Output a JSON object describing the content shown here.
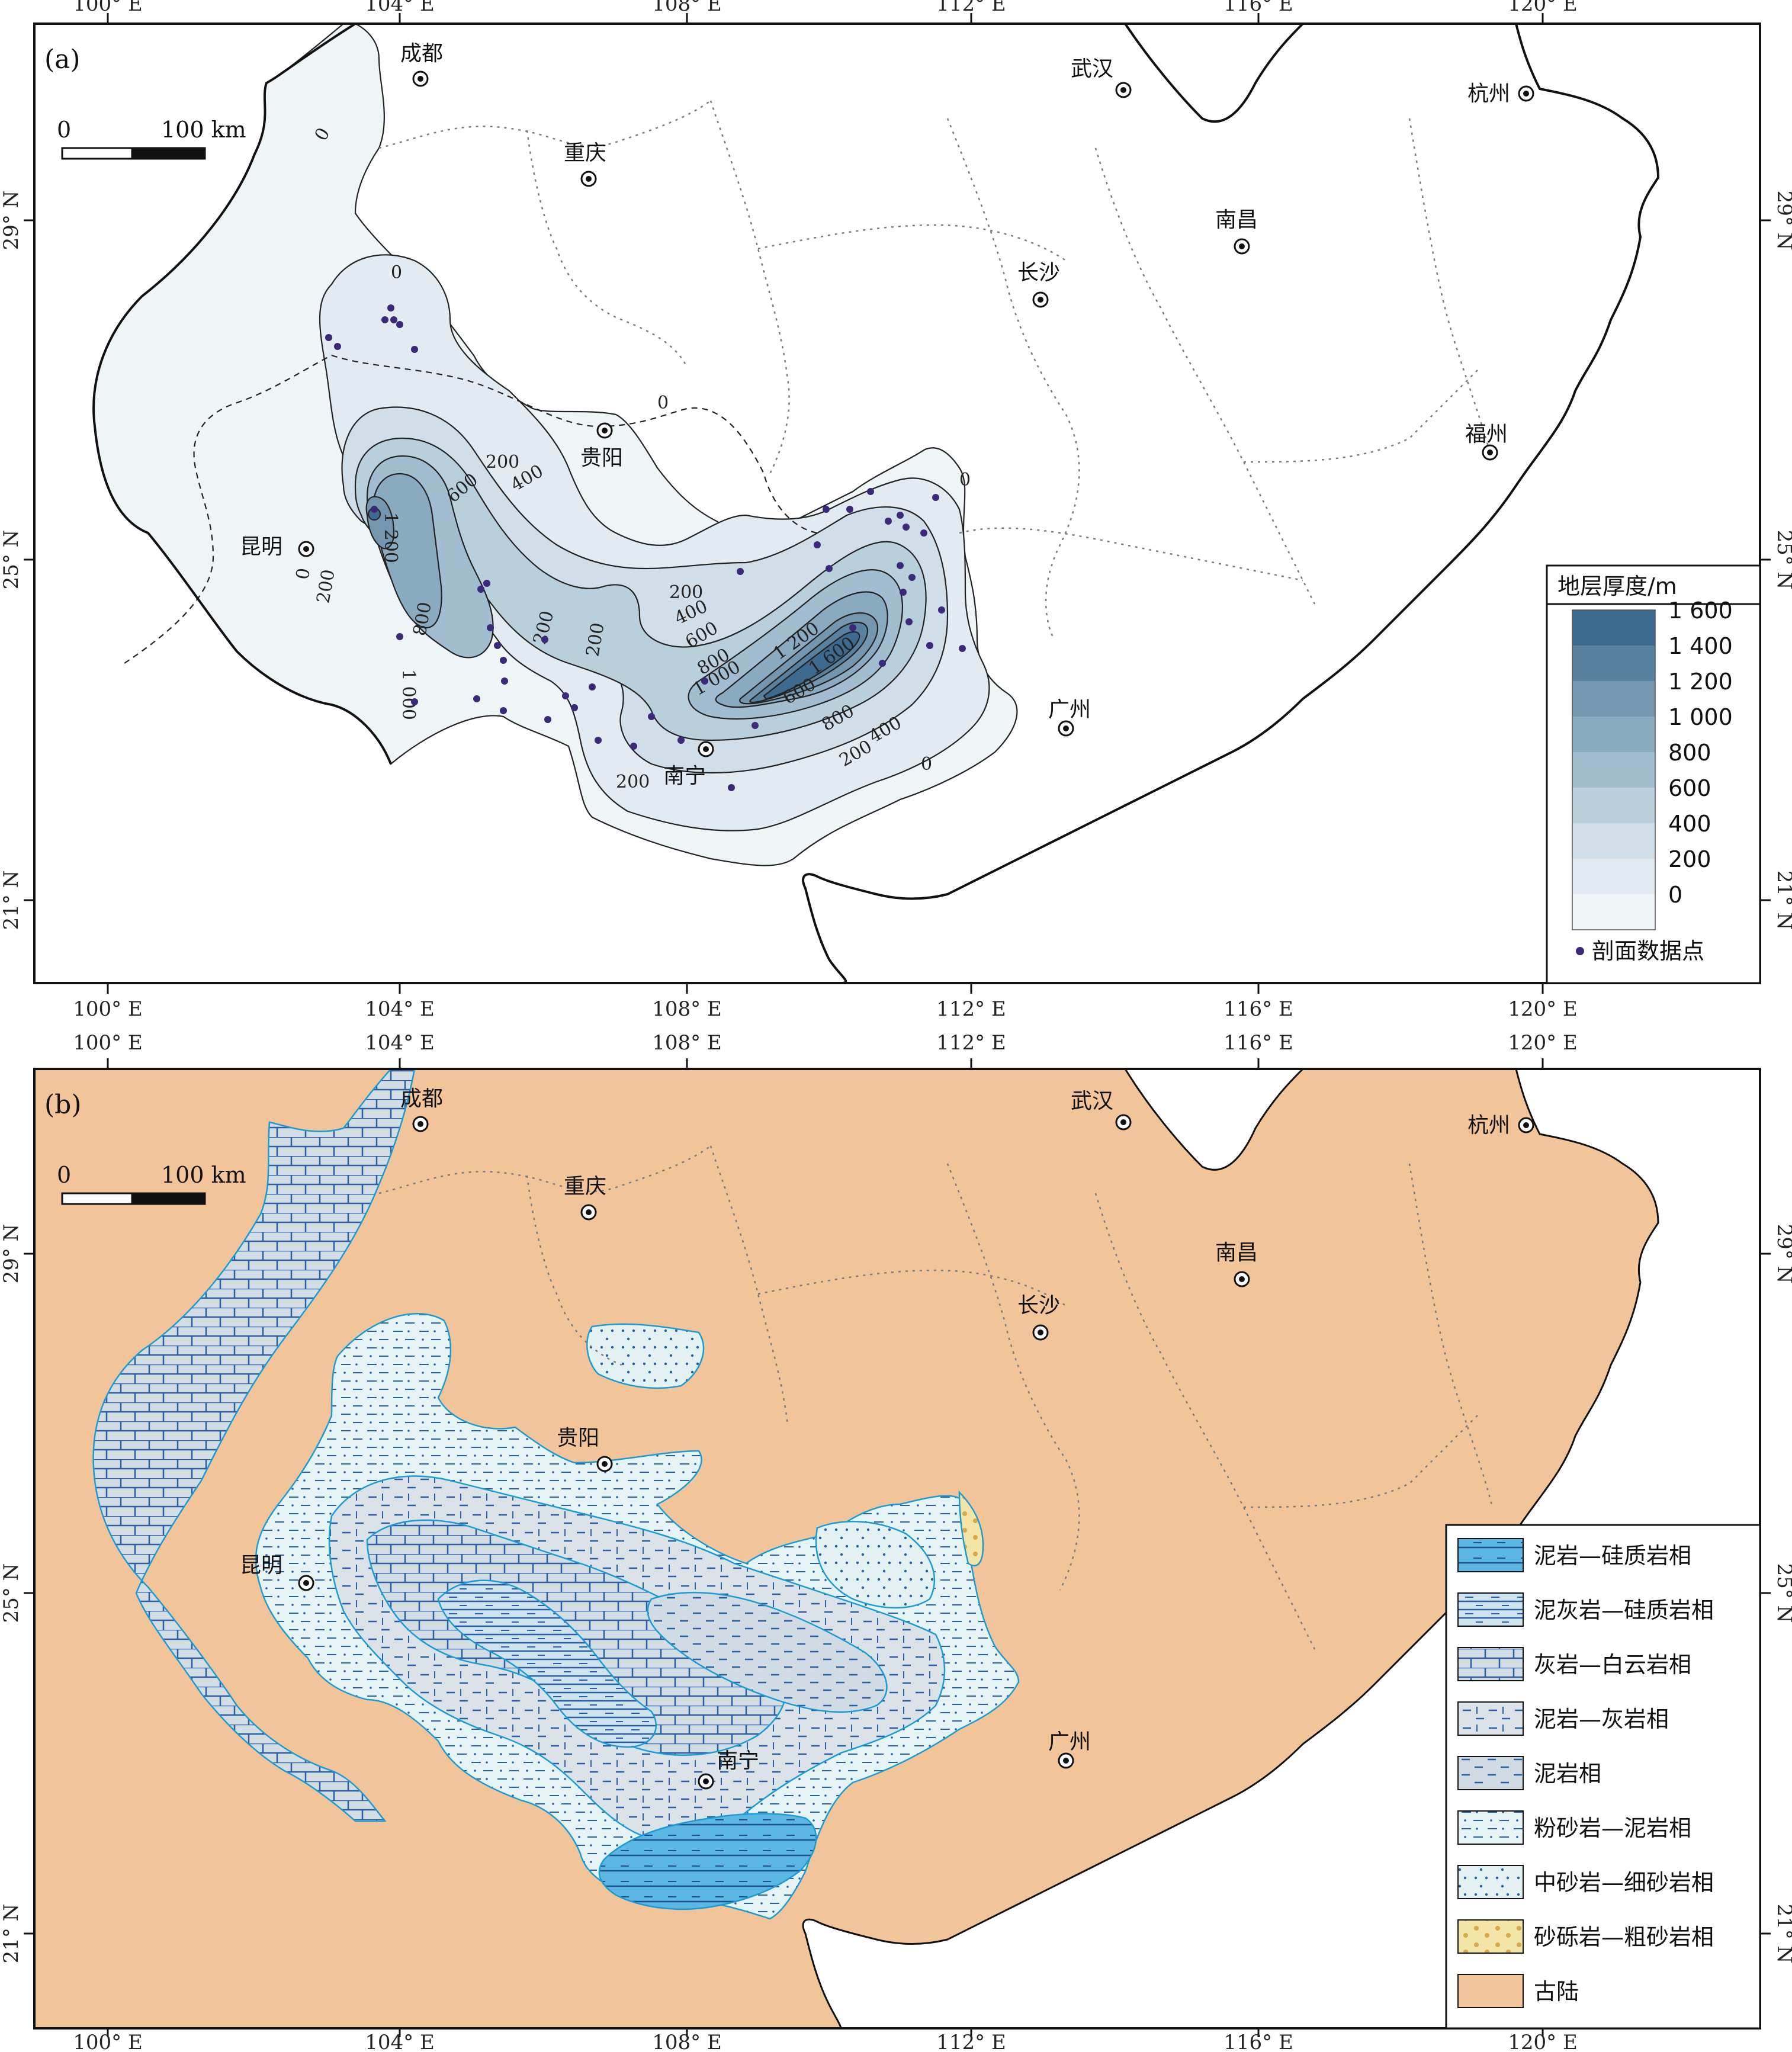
{
  "panel_a": {
    "label": "(a)",
    "lon_ticks": [
      "100° E",
      "104° E",
      "108° E",
      "112° E",
      "116° E",
      "120° E"
    ],
    "lat_ticks": [
      "29° N",
      "25° N",
      "21° N"
    ],
    "scale_bar": {
      "zero": "0",
      "distance": "100 km"
    },
    "cities": [
      {
        "id": "chengdu",
        "name": "成都"
      },
      {
        "id": "chongqing",
        "name": "重庆"
      },
      {
        "id": "wuhan",
        "name": "武汉"
      },
      {
        "id": "hangzhou",
        "name": "杭州"
      },
      {
        "id": "nanchang",
        "name": "南昌"
      },
      {
        "id": "changsha",
        "name": "长沙"
      },
      {
        "id": "guiyang",
        "name": "贵阳"
      },
      {
        "id": "fuzhou",
        "name": "福州"
      },
      {
        "id": "kunming",
        "name": "昆明"
      },
      {
        "id": "guangzhou",
        "name": "广州"
      },
      {
        "id": "nanning",
        "name": "南宁"
      }
    ],
    "contour_labels": [
      "0",
      "0",
      "0",
      "0",
      "0",
      "0",
      "200",
      "200",
      "200",
      "200",
      "200",
      "200",
      "200",
      "400",
      "400",
      "400",
      "600",
      "600",
      "600",
      "800",
      "800",
      "800",
      "1 000",
      "1 000",
      "1 200",
      "1 200",
      "1 600"
    ],
    "legend": {
      "title": "地层厚度/m",
      "classes": [
        {
          "label": "1 600",
          "color": "#3d6a8f"
        },
        {
          "label": "1 400",
          "color": "#58809f"
        },
        {
          "label": "1 200",
          "color": "#7496ae"
        },
        {
          "label": "1 000",
          "color": "#8aaabf"
        },
        {
          "label": "800",
          "color": "#a2bdcf"
        },
        {
          "label": "600",
          "color": "#b9cfdc"
        },
        {
          "label": "400",
          "color": "#cfdee8"
        },
        {
          "label": "200",
          "color": "#e1ebf1"
        },
        {
          "label": "0",
          "color": "#eff5f7"
        }
      ],
      "point_label": "剖面数据点",
      "point_color": "#3b2a7a"
    }
  },
  "panel_b": {
    "label": "(b)",
    "lon_ticks": [
      "100° E",
      "104° E",
      "108° E",
      "112° E",
      "116° E",
      "120° E"
    ],
    "lat_ticks": [
      "29° N",
      "25° N",
      "21° N"
    ],
    "scale_bar": {
      "zero": "0",
      "distance": "100 km"
    },
    "cities": [
      {
        "id": "chengdu",
        "name": "成都"
      },
      {
        "id": "chongqing",
        "name": "重庆"
      },
      {
        "id": "wuhan",
        "name": "武汉"
      },
      {
        "id": "hangzhou",
        "name": "杭州"
      },
      {
        "id": "nanchang",
        "name": "南昌"
      },
      {
        "id": "changsha",
        "name": "长沙"
      },
      {
        "id": "guiyang",
        "name": "贵阳"
      },
      {
        "id": "kunming",
        "name": "昆明"
      },
      {
        "id": "guangzhou",
        "name": "广州"
      },
      {
        "id": "nanning",
        "name": "南宁"
      }
    ],
    "legend": [
      {
        "label": "泥岩—硅质岩相",
        "color": "#5cb7e3",
        "pattern": "mudstone-siliceous"
      },
      {
        "label": "泥灰岩—硅质岩相",
        "color": "#cfe3ef",
        "pattern": "marl-siliceous"
      },
      {
        "label": "灰岩—白云岩相",
        "color": "#d3dde4",
        "pattern": "limestone-dolomite"
      },
      {
        "label": "泥岩—灰岩相",
        "color": "#dbe3e9",
        "pattern": "mudstone-limestone"
      },
      {
        "label": "泥岩相",
        "color": "#d0dbe3",
        "pattern": "mudstone"
      },
      {
        "label": "粉砂岩—泥岩相",
        "color": "#e6f3f5",
        "pattern": "siltstone-mudstone"
      },
      {
        "label": "中砂岩—细砂岩相",
        "color": "#e3f1f3",
        "pattern": "medium-fine-sandstone"
      },
      {
        "label": "砂砾岩—粗砂岩相",
        "color": "#f3e4a8",
        "pattern": "conglomerate-coarse-sandstone"
      },
      {
        "label": "古陆",
        "color": "#f2c49a",
        "pattern": "ancient-land"
      }
    ]
  }
}
